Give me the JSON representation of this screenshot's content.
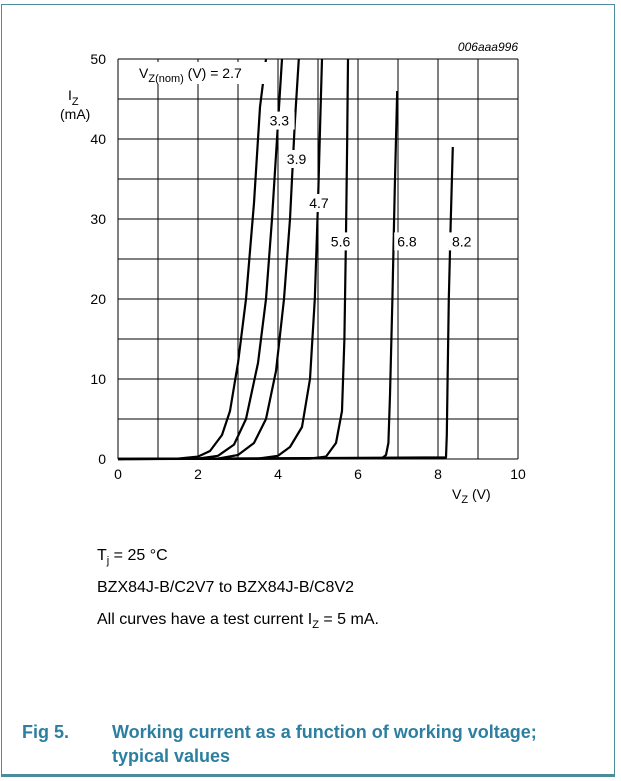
{
  "chart_data": {
    "type": "line",
    "code": "006aaa996",
    "xlabel": {
      "main": "V",
      "sub": "Z",
      "unit": " (V)"
    },
    "ylabel": {
      "main": "I",
      "sub": "Z",
      "unit": "(mA)"
    },
    "xlim": [
      0,
      10
    ],
    "ylim": [
      0,
      50
    ],
    "xticks": [
      0,
      2,
      4,
      6,
      8,
      10
    ],
    "yticks": [
      0,
      10,
      20,
      30,
      40,
      50
    ],
    "grid": true,
    "legend_label": {
      "main": "V",
      "sub": "Z(nom)",
      "rest": " (V) = 2.7"
    },
    "series": [
      {
        "name": "2.7",
        "x": [
          0,
          1.5,
          2.0,
          2.3,
          2.6,
          2.8,
          3.0,
          3.2,
          3.4,
          3.55,
          3.7
        ],
        "y": [
          0,
          0.05,
          0.3,
          1.0,
          3.0,
          6.0,
          12.0,
          20.0,
          32.0,
          44.0,
          50.0
        ]
      },
      {
        "name": "3.3",
        "x": [
          0,
          2.0,
          2.5,
          2.9,
          3.2,
          3.5,
          3.7,
          3.85,
          4.0,
          4.1
        ],
        "y": [
          0,
          0.05,
          0.4,
          1.8,
          5.0,
          12.0,
          20.0,
          30.0,
          42.0,
          50.0
        ]
      },
      {
        "name": "3.9",
        "x": [
          0,
          2.5,
          3.0,
          3.4,
          3.7,
          3.95,
          4.15,
          4.3,
          4.42,
          4.52
        ],
        "y": [
          0,
          0.05,
          0.5,
          2.0,
          5.0,
          11.0,
          20.0,
          30.0,
          42.0,
          50.0
        ]
      },
      {
        "name": "4.7",
        "x": [
          0,
          3.5,
          4.0,
          4.3,
          4.6,
          4.8,
          4.92,
          5.0,
          5.06,
          5.1
        ],
        "y": [
          0,
          0.05,
          0.4,
          1.5,
          4.0,
          10.0,
          20.0,
          32.0,
          43.0,
          50.0
        ]
      },
      {
        "name": "5.6",
        "x": [
          0,
          4.8,
          5.2,
          5.45,
          5.6,
          5.66,
          5.7,
          5.73,
          5.75
        ],
        "y": [
          0,
          0.05,
          0.3,
          2.0,
          6.0,
          15.0,
          28.0,
          40.0,
          50.0
        ]
      },
      {
        "name": "6.8",
        "x": [
          0,
          6.6,
          6.7,
          6.76,
          6.8,
          6.86,
          6.92,
          6.98
        ],
        "y": [
          0,
          0.1,
          0.5,
          2.0,
          8.0,
          20.0,
          34.0,
          46.0
        ]
      },
      {
        "name": "8.2",
        "x": [
          0,
          8.2,
          8.22,
          8.24,
          8.27,
          8.32,
          8.37
        ],
        "y": [
          0,
          0.2,
          3.0,
          10.0,
          20.0,
          30.0,
          39.0
        ]
      }
    ],
    "curve_labels": [
      "3.3",
      "3.9",
      "4.7",
      "5.6",
      "6.8",
      "8.2"
    ]
  },
  "notes": {
    "tj": {
      "main": "T",
      "sub": "j",
      "rest": " = 25 °C"
    },
    "range": "BZX84J-B/C2V7 to BZX84J-B/C8V2",
    "test_current": {
      "pre": "All curves have a test current I",
      "sub": "Z",
      "post": " = 5 mA."
    }
  },
  "caption": {
    "number": "Fig 5.",
    "text": "Working current as a function of working voltage; typical values"
  },
  "colors": {
    "caption": "#2c7fa0",
    "frame": "#4a8b9c",
    "curve": "#000000",
    "grid": "#000000"
  }
}
